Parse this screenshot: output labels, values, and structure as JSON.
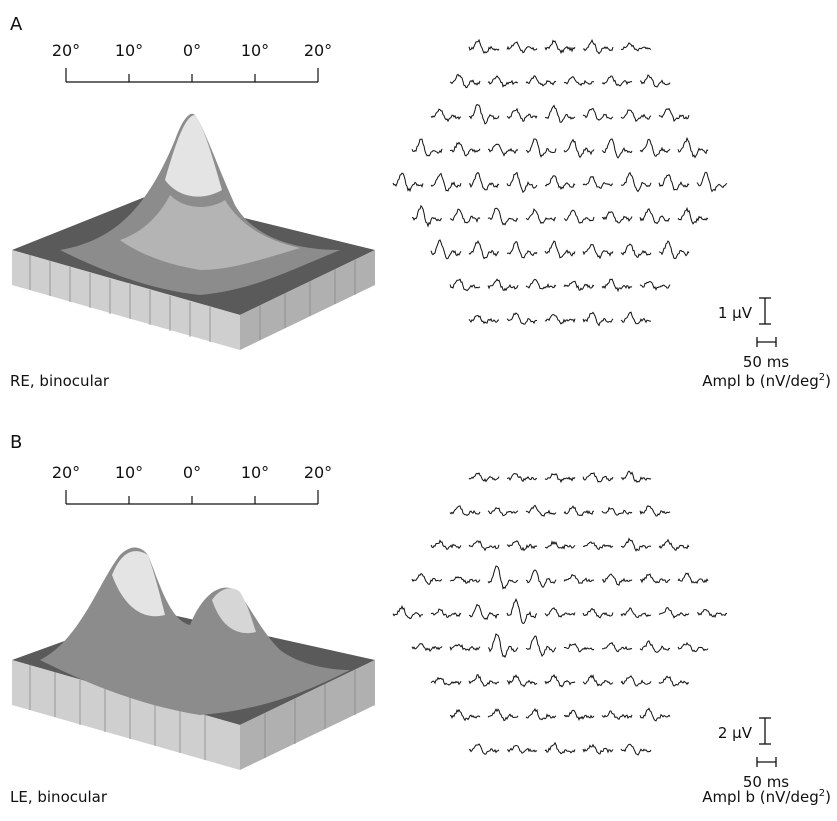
{
  "panels": [
    {
      "letter": "A",
      "scale_labels": [
        "20°",
        "10°",
        "0°",
        "10°",
        "20°"
      ],
      "eye_label": "RE, binocular",
      "voltage_label": "1 µV",
      "time_label": "50 ms",
      "ampl_label": "Ampl b (nV/deg",
      "ampl_sup": "2",
      "ampl_close": ")",
      "row_counts": [
        5,
        6,
        7,
        8,
        9,
        8,
        7,
        6,
        5
      ],
      "surface_shape": "single-central-peak"
    },
    {
      "letter": "B",
      "scale_labels": [
        "20°",
        "10°",
        "0°",
        "10°",
        "20°"
      ],
      "eye_label": "LE, binocular",
      "voltage_label": "2 µV",
      "time_label": "50 ms",
      "ampl_label": "Ampl b (nV/deg",
      "ampl_sup": "2",
      "ampl_close": ")",
      "row_counts": [
        5,
        6,
        7,
        8,
        9,
        8,
        7,
        6,
        5
      ],
      "surface_shape": "double-peak"
    }
  ],
  "colors": {
    "ink": "#111111",
    "surface_light": "#e6e6e6",
    "surface_dark": "#4a4a4a"
  }
}
